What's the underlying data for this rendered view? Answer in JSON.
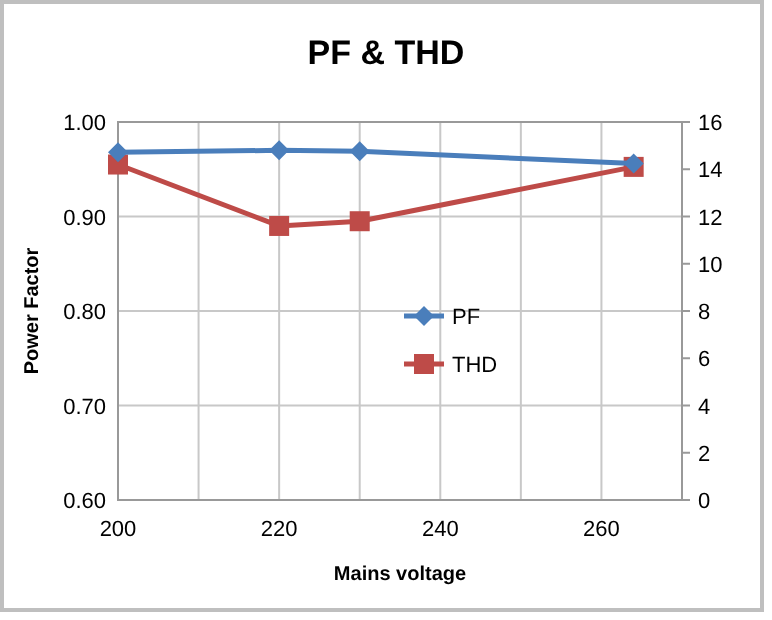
{
  "chart_data": {
    "type": "line",
    "title": "PF & THD",
    "xlabel": "Mains voltage",
    "ylabel": "Power Factor",
    "x": [
      200,
      220,
      230,
      264
    ],
    "series": [
      {
        "name": "PF",
        "color": "#4a7ebb",
        "values": [
          0.968,
          0.97,
          0.969,
          0.956
        ],
        "marker": "diamond"
      },
      {
        "name": "THD",
        "color": "#be4b48",
        "values": [
          14.2,
          11.6,
          11.8,
          14.1
        ],
        "axis": "y2",
        "marker": "square"
      }
    ],
    "xlim": [
      200,
      270
    ],
    "xticks": [
      200,
      {
        "value": 210,
        "label": null
      },
      220,
      {
        "value": 230,
        "label": null
      },
      240,
      {
        "value": 250,
        "label": null
      },
      260,
      {
        "value": 270,
        "label": null
      }
    ],
    "ylim": [
      0.6,
      1.0
    ],
    "yticks": [
      {
        "value": 0.6,
        "label": "0.60"
      },
      {
        "value": 0.7,
        "label": "0.70"
      },
      {
        "value": 0.8,
        "label": "0.80"
      },
      {
        "value": 0.9,
        "label": "0.90"
      },
      {
        "value": 1.0,
        "label": "1.00"
      }
    ],
    "y2lim": [
      0,
      16
    ],
    "y2ticks": [
      0,
      2,
      4,
      6,
      8,
      10,
      12,
      14,
      16
    ],
    "grid": true,
    "legend": "center",
    "line_style": "solid"
  }
}
